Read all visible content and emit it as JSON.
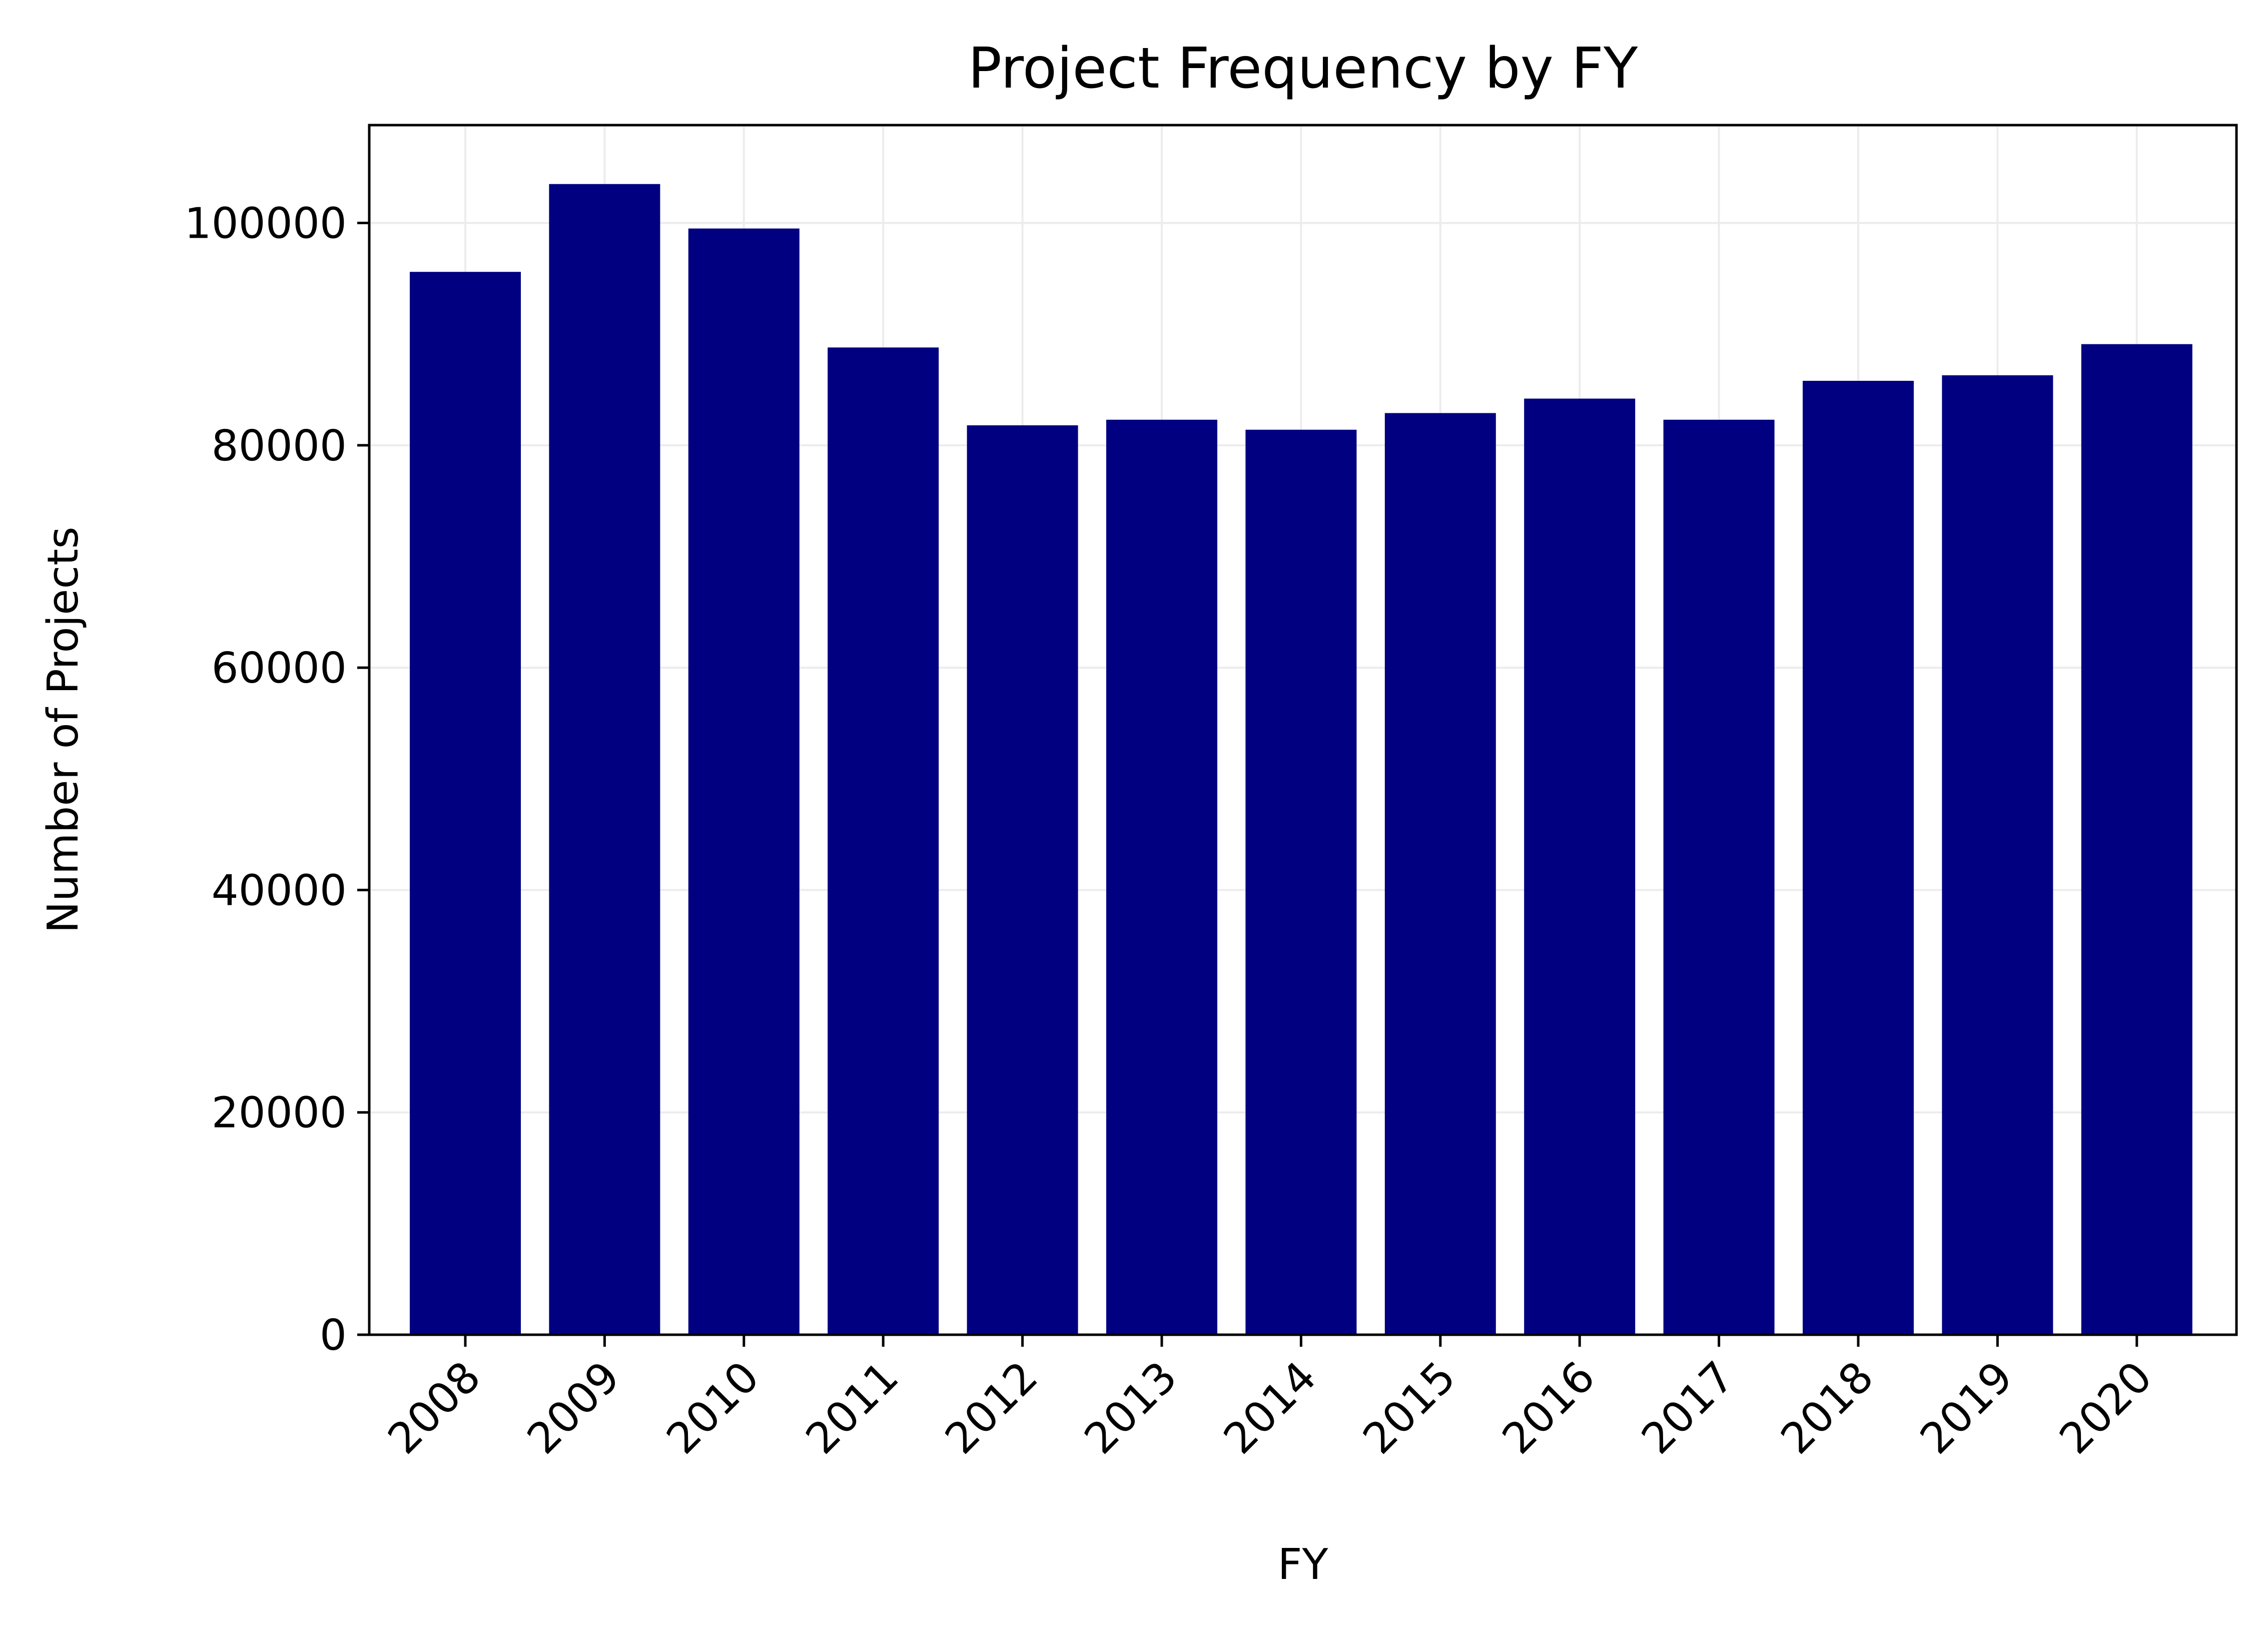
{
  "chart_data": {
    "type": "bar",
    "title": "Project Frequency by FY",
    "xlabel": "FY",
    "ylabel": "Number of Projects",
    "categories": [
      "2008",
      "2009",
      "2010",
      "2011",
      "2012",
      "2013",
      "2014",
      "2015",
      "2016",
      "2017",
      "2018",
      "2019",
      "2020"
    ],
    "values": [
      95600,
      103500,
      99500,
      88800,
      81800,
      82300,
      81400,
      82900,
      84200,
      82300,
      85800,
      86300,
      89100
    ],
    "ylim": [
      0,
      108800
    ],
    "yticks": [
      0,
      20000,
      40000,
      60000,
      80000,
      100000
    ],
    "ytick_labels": [
      "0",
      "20000",
      "40000",
      "60000",
      "80000",
      "100000"
    ],
    "grid": true,
    "bar_color": "#000080",
    "grid_color": "#ececec"
  }
}
